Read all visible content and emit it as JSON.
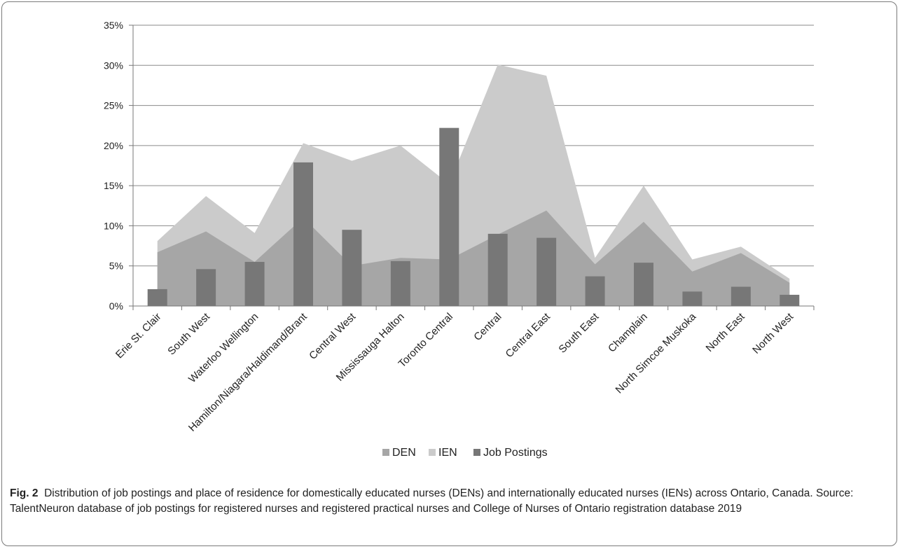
{
  "caption": {
    "figure_label": "Fig. 2",
    "text": "Distribution of job postings and place of residence for domestically educated nurses (DENs) and internationally educated nurses (IENs) across Ontario, Canada. Source: TalentNeuron database of job postings for registered nurses and registered practical nurses and College of Nurses of Ontario registration database 2019"
  },
  "chart_data": {
    "type": "bar",
    "title": "",
    "xlabel": "",
    "ylabel": "",
    "ylim": [
      0,
      35
    ],
    "y_ticks": [
      "0%",
      "5%",
      "10%",
      "15%",
      "20%",
      "25%",
      "30%",
      "35%"
    ],
    "y_tick_values": [
      0,
      5,
      10,
      15,
      20,
      25,
      30,
      35
    ],
    "grid": "horizontal",
    "legend_position": "bottom",
    "categories": [
      "Erie St. Clair",
      "South West",
      "Waterloo Wellington",
      "Hamilton/Niagara/Haldimand/Brant",
      "Central West",
      "Mississauga Halton",
      "Toronto Central",
      "Central",
      "Central East",
      "South East",
      "Champlain",
      "North Simcoe Muskoka",
      "North East",
      "North West"
    ],
    "series": [
      {
        "name": "DEN",
        "chart_type": "area",
        "color": "#a6a6a6",
        "values": [
          6.7,
          9.3,
          5.5,
          11.0,
          5.0,
          6.0,
          5.8,
          8.9,
          11.9,
          5.2,
          10.5,
          4.3,
          6.6,
          2.9
        ]
      },
      {
        "name": "IEN",
        "chart_type": "area",
        "color": "#cbcbcb",
        "values": [
          8.1,
          13.7,
          9.1,
          20.3,
          18.1,
          20.0,
          15.2,
          30.1,
          28.7,
          6.0,
          15.0,
          5.8,
          7.4,
          3.4
        ]
      },
      {
        "name": "Job Postings",
        "chart_type": "bar",
        "color": "#777777",
        "values": [
          2.1,
          4.6,
          5.5,
          17.9,
          9.5,
          5.6,
          22.2,
          9.0,
          8.5,
          3.7,
          5.4,
          1.8,
          2.4,
          1.4
        ]
      }
    ]
  }
}
